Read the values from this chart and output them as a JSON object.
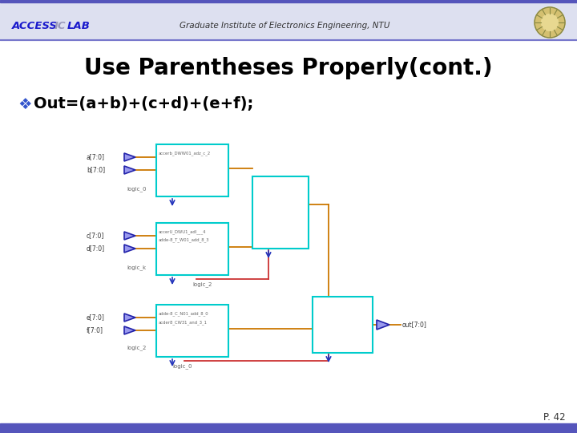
{
  "title": "Use Parentheses Properly(cont.)",
  "subtitle": "Out=(a+b)+(c+d)+(e+f);",
  "header_left_1": "ACCESS",
  "header_left_2": " IC ",
  "header_left_3": "LAB",
  "header_center": "Graduate Institute of Electronics Engineering, NTU",
  "page_number": "P. 42",
  "bg_color": "#ffffff",
  "header_bg_color": "#dde0f0",
  "footer_bar_color": "#5555bb",
  "title_color": "#000000",
  "buf_face_color": "#4444cc",
  "buf_edge_color": "#2222aa",
  "box_color": "#00cccc",
  "wire_color": "#cc7700",
  "logic_wire_color": "#cc3333",
  "text_color": "#333333",
  "label_color": "#666666",
  "access_color": "#1a1acc",
  "ic_color": "#8888aa",
  "lab_color": "#1a1acc"
}
